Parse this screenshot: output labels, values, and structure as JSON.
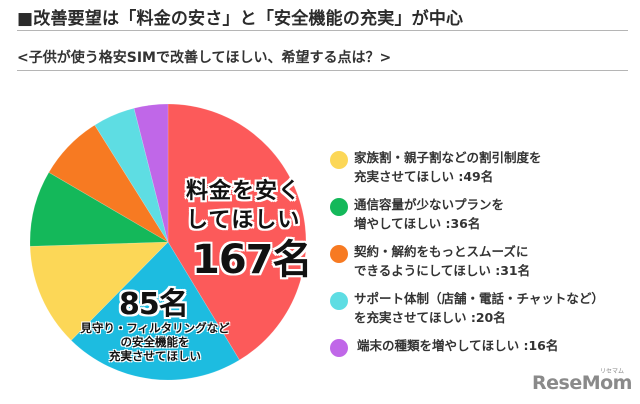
{
  "header": {
    "title": "■改善要望は「料金の安さ」と「安全機能の充実」が中心",
    "subtitle": "<子供が使う格安SIMで改善してほしい、希望する点は？>"
  },
  "pie_labels": {
    "red_line1": "料金を安く",
    "red_line2": "してほしい",
    "red_value": "167名",
    "blue_value": "85名",
    "blue_line1": "見守り・フィルタリングなど",
    "blue_line2": "の安全機能を",
    "blue_line3": "充実させてほしい"
  },
  "legend": {
    "items": [
      {
        "line1": "家族割・親子割などの割引制度を",
        "line2": "充実させてほしい :49名",
        "color": "#FCD757"
      },
      {
        "line1": "通信容量が少ないプランを",
        "line2": "増やしてほしい :36名",
        "color": "#14B85A"
      },
      {
        "line1": "契約・解約をもっとスムーズに",
        "line2": "できるようにしてほしい :31名",
        "color": "#F77A22"
      },
      {
        "line1": "サポート体制（店舗・電話・チャットなど）",
        "line2": "を充実させてほしい :20名",
        "color": "#5EDDE3"
      },
      {
        "line1": "端末の種類を増やしてほしい :16名",
        "color": "#C067E8"
      }
    ]
  },
  "logo": {
    "text": "ReseMom",
    "kana": "リセマム"
  },
  "chart_data": {
    "type": "pie",
    "title": "改善要望は「料金の安さ」と「安全機能の充実」が中心",
    "subtitle": "子供が使う格安SIMで改善してほしい、希望する点は？",
    "unit": "名",
    "start_angle": "12 o'clock, clockwise",
    "categories": [
      "料金を安くしてほしい",
      "見守り・フィルタリングなどの安全機能を充実させてほしい",
      "家族割・親子割などの割引制度を充実させてほしい",
      "通信容量が少ないプランを増やしてほしい",
      "契約・解約をもっとスムーズにできるようにしてほしい",
      "サポート体制（店舗・電話・チャットなど）を充実させてほしい",
      "端末の種類を増やしてほしい"
    ],
    "values": [
      167,
      85,
      49,
      36,
      31,
      20,
      16
    ],
    "colors": [
      "#FC5A5A",
      "#1DBCE0",
      "#FCD757",
      "#14B85A",
      "#F77A22",
      "#5EDDE3",
      "#C067E8"
    ],
    "legend_position": "right"
  }
}
